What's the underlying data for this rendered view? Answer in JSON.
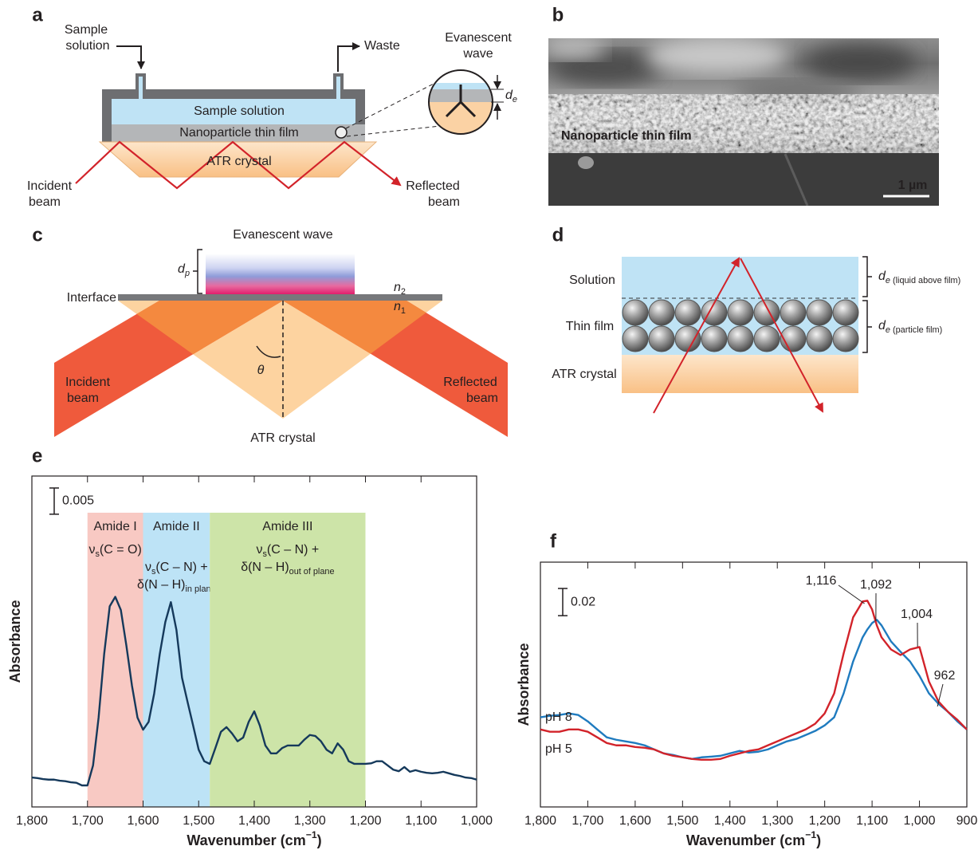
{
  "panels": {
    "a": {
      "label": "a",
      "sample_solution_inlet": [
        "Sample",
        "solution"
      ],
      "waste": "Waste",
      "evanescent_wave": [
        "Evanescent",
        "wave"
      ],
      "depth": [
        {
          "t": "d",
          "i": true
        },
        {
          "t": "e",
          "sub": true,
          "i": true
        }
      ],
      "sample_solution": "Sample solution",
      "thin_film": "Nanoparticle thin film",
      "crystal": "ATR crystal",
      "incident_beam": [
        "Incident",
        "beam"
      ],
      "reflected_beam": [
        "Reflected",
        "beam"
      ]
    },
    "b": {
      "label": "b",
      "thin_film": "Nanoparticle thin film",
      "scale_bar": "1 µm"
    },
    "c": {
      "label": "c",
      "evanescent_wave": "Evanescent wave",
      "depth": [
        {
          "t": "d",
          "i": true
        },
        {
          "t": "p",
          "sub": true,
          "i": true
        }
      ],
      "interface": "Interface",
      "n2": [
        {
          "t": "n",
          "i": true
        },
        {
          "t": "2",
          "sub": true
        }
      ],
      "n1": [
        {
          "t": "n",
          "i": true
        },
        {
          "t": "1",
          "sub": true
        }
      ],
      "angle": "θ",
      "incident_beam": [
        "Incident",
        "beam"
      ],
      "reflected_beam": [
        "Reflected",
        "beam"
      ],
      "crystal": "ATR crystal"
    },
    "d": {
      "label": "d",
      "solution": "Solution",
      "thin_film": "Thin film",
      "crystal": "ATR crystal",
      "depth_liquid": [
        {
          "t": "d",
          "i": true
        },
        {
          "t": "e",
          "sub": true,
          "i": true
        },
        {
          "t": " (liquid above film)",
          "sub": true
        }
      ],
      "depth_film": [
        {
          "t": "d",
          "i": true
        },
        {
          "t": "e",
          "sub": true,
          "i": true
        },
        {
          "t": " (particle film)",
          "sub": true
        }
      ]
    }
  },
  "chart_data": [
    {
      "type": "line",
      "panel_label": "e",
      "ylabel": "Absorbance",
      "xlabel": [
        {
          "t": "Wavenumber (cm"
        },
        {
          "t": "−1",
          "sup": true
        },
        {
          "t": ")"
        }
      ],
      "xlim": [
        1800,
        1000
      ],
      "ylim": [
        0,
        0.063
      ],
      "xticks": [
        {
          "value": 1800,
          "label": "1,800"
        },
        {
          "value": 1700,
          "label": "1,700"
        },
        {
          "value": 1600,
          "label": "1,600"
        },
        {
          "value": 1500,
          "label": "1,500"
        },
        {
          "value": 1400,
          "label": "1,400"
        },
        {
          "value": 1300,
          "label": "1,300"
        },
        {
          "value": 1200,
          "label": "1,200"
        },
        {
          "value": 1100,
          "label": "1,100"
        },
        {
          "value": 1000,
          "label": "1,000"
        }
      ],
      "scale_bar": 0.005,
      "regions": [
        {
          "name": "Amide I",
          "from": 1700,
          "to": 1600,
          "color": "#f8c9c3",
          "lines": [
            [
              {
                "t": "ν"
              },
              {
                "t": "s",
                "sub": true
              },
              {
                "t": "(C = O)"
              }
            ]
          ]
        },
        {
          "name": "Amide II",
          "from": 1600,
          "to": 1480,
          "color": "#bde3f6",
          "lines": [
            [
              {
                "t": "ν"
              },
              {
                "t": "s",
                "sub": true
              },
              {
                "t": "(C – N) +"
              }
            ],
            [
              {
                "t": "δ(N – H)"
              },
              {
                "t": "in plane",
                "sub": true
              }
            ]
          ]
        },
        {
          "name": "Amide III",
          "from": 1480,
          "to": 1200,
          "color": "#cde4a8",
          "lines": [
            [
              {
                "t": "ν"
              },
              {
                "t": "s",
                "sub": true
              },
              {
                "t": "(C – N) +"
              }
            ],
            [
              {
                "t": "δ(N – H)"
              },
              {
                "t": "out of plane",
                "sub": true
              }
            ]
          ]
        }
      ],
      "x": [
        1800,
        1790,
        1780,
        1770,
        1760,
        1750,
        1740,
        1730,
        1720,
        1710,
        1700,
        1690,
        1680,
        1670,
        1660,
        1650,
        1640,
        1630,
        1620,
        1610,
        1600,
        1590,
        1580,
        1570,
        1560,
        1550,
        1540,
        1530,
        1520,
        1510,
        1500,
        1490,
        1480,
        1470,
        1460,
        1450,
        1440,
        1430,
        1420,
        1410,
        1400,
        1390,
        1380,
        1370,
        1360,
        1350,
        1340,
        1330,
        1320,
        1310,
        1300,
        1290,
        1280,
        1270,
        1260,
        1250,
        1240,
        1230,
        1220,
        1210,
        1200,
        1190,
        1180,
        1170,
        1160,
        1150,
        1140,
        1130,
        1120,
        1110,
        1100,
        1090,
        1080,
        1070,
        1060,
        1050,
        1040,
        1030,
        1020,
        1010,
        1000
      ],
      "series": [
        {
          "color": "#15395b",
          "values": [
            0.0056,
            0.0055,
            0.0053,
            0.0052,
            0.0052,
            0.005,
            0.0049,
            0.0047,
            0.0046,
            0.0041,
            0.0041,
            0.0079,
            0.017,
            0.0291,
            0.0382,
            0.04,
            0.0375,
            0.0307,
            0.0231,
            0.017,
            0.0147,
            0.0162,
            0.0216,
            0.0291,
            0.0352,
            0.039,
            0.0337,
            0.0246,
            0.02,
            0.0155,
            0.0109,
            0.0087,
            0.0082,
            0.0112,
            0.0143,
            0.0152,
            0.014,
            0.0125,
            0.0132,
            0.0162,
            0.0182,
            0.0155,
            0.0117,
            0.0102,
            0.0102,
            0.0112,
            0.0117,
            0.0117,
            0.0117,
            0.0128,
            0.0137,
            0.0135,
            0.0125,
            0.0109,
            0.0102,
            0.0121,
            0.0109,
            0.0087,
            0.0082,
            0.0082,
            0.0082,
            0.0083,
            0.0087,
            0.0087,
            0.0079,
            0.0071,
            0.0068,
            0.0076,
            0.0067,
            0.007,
            0.0067,
            0.0065,
            0.0064,
            0.0065,
            0.0067,
            0.0064,
            0.0061,
            0.0059,
            0.0056,
            0.0055,
            0.0052
          ]
        }
      ]
    },
    {
      "type": "line",
      "panel_label": "f",
      "ylabel": "Absorbance",
      "xlabel": [
        {
          "t": "Wavenumber (cm"
        },
        {
          "t": "−1",
          "sup": true
        },
        {
          "t": ")"
        }
      ],
      "xlim": [
        1800,
        900
      ],
      "ylim": [
        0,
        0.18
      ],
      "xticks": [
        {
          "value": 1800,
          "label": "1,800"
        },
        {
          "value": 1700,
          "label": "1,700"
        },
        {
          "value": 1600,
          "label": "1,600"
        },
        {
          "value": 1500,
          "label": "1,500"
        },
        {
          "value": 1400,
          "label": "1,400"
        },
        {
          "value": 1300,
          "label": "1,300"
        },
        {
          "value": 1200,
          "label": "1,200"
        },
        {
          "value": 1100,
          "label": "1,100"
        },
        {
          "value": 1000,
          "label": "1,000"
        },
        900
      ],
      "scale_bar": 0.02,
      "x": [
        1800,
        1780,
        1760,
        1740,
        1720,
        1700,
        1680,
        1660,
        1640,
        1620,
        1600,
        1580,
        1560,
        1540,
        1520,
        1500,
        1480,
        1460,
        1440,
        1420,
        1400,
        1380,
        1360,
        1340,
        1320,
        1300,
        1280,
        1260,
        1240,
        1220,
        1200,
        1180,
        1160,
        1140,
        1120,
        1110,
        1100,
        1090,
        1080,
        1060,
        1040,
        1020,
        1000,
        980,
        960,
        940,
        920,
        900
      ],
      "series": [
        {
          "name": "pH 8",
          "color": "#1f7bbf",
          "values": [
            0.0659,
            0.067,
            0.0676,
            0.0688,
            0.0676,
            0.0629,
            0.057,
            0.0512,
            0.0494,
            0.0482,
            0.047,
            0.0453,
            0.0423,
            0.0394,
            0.0382,
            0.0365,
            0.0353,
            0.0365,
            0.037,
            0.0376,
            0.0394,
            0.0412,
            0.04,
            0.0406,
            0.0423,
            0.0453,
            0.0482,
            0.05,
            0.0529,
            0.0559,
            0.06,
            0.0659,
            0.0835,
            0.107,
            0.1247,
            0.1305,
            0.1352,
            0.1376,
            0.1335,
            0.1217,
            0.1141,
            0.107,
            0.0964,
            0.0835,
            0.0759,
            0.07,
            0.0629,
            0.057
          ]
        },
        {
          "name": "pH 5",
          "color": "#d2232a",
          "values": [
            0.057,
            0.0553,
            0.0553,
            0.057,
            0.057,
            0.0553,
            0.0512,
            0.047,
            0.0453,
            0.0453,
            0.0441,
            0.0435,
            0.0423,
            0.0394,
            0.0376,
            0.0365,
            0.0353,
            0.0347,
            0.0347,
            0.0353,
            0.0376,
            0.0394,
            0.0412,
            0.0423,
            0.0453,
            0.0482,
            0.0512,
            0.0541,
            0.057,
            0.0612,
            0.0688,
            0.0835,
            0.1129,
            0.1394,
            0.1511,
            0.1517,
            0.1452,
            0.1335,
            0.1247,
            0.1158,
            0.1117,
            0.1158,
            0.1176,
            0.0923,
            0.0776,
            0.07,
            0.0641,
            0.057
          ]
        }
      ],
      "annotations": [
        {
          "value": 1116,
          "label": "1,116"
        },
        {
          "value": 1092,
          "label": "1,092"
        },
        {
          "value": 1004,
          "label": "1,004"
        },
        {
          "value": 962,
          "label": "962"
        }
      ]
    }
  ]
}
